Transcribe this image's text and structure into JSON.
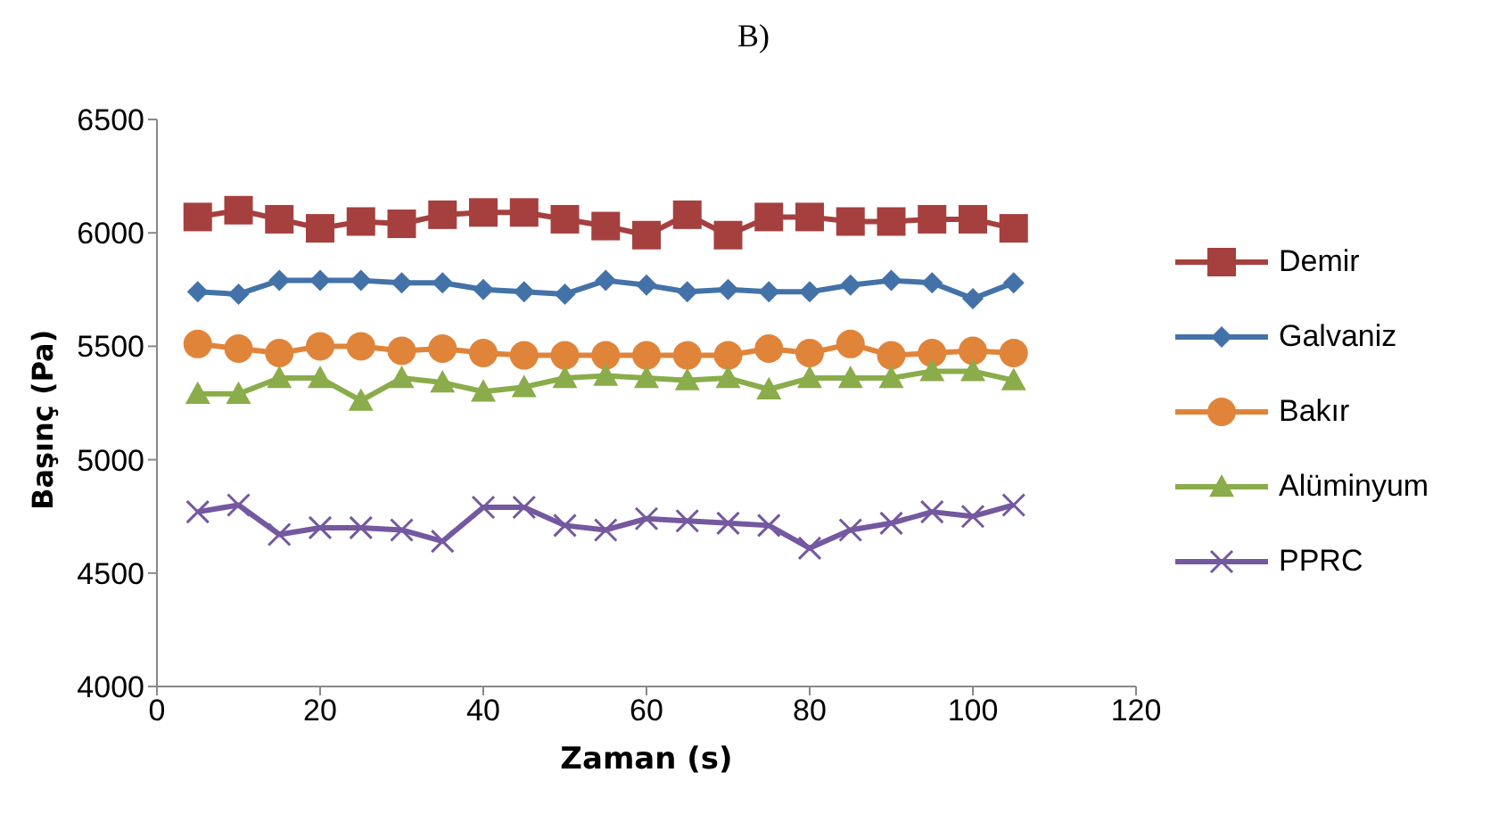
{
  "chart_data": {
    "type": "line",
    "title": "B)",
    "xlabel": "Zaman (s)",
    "ylabel": "Başınç (Pa)",
    "x": [
      5,
      10,
      15,
      20,
      25,
      30,
      35,
      40,
      45,
      50,
      55,
      60,
      65,
      70,
      75,
      80,
      85,
      90,
      95,
      100,
      105
    ],
    "xlim": [
      0,
      120
    ],
    "xticks": [
      0,
      20,
      40,
      60,
      80,
      100,
      120
    ],
    "ylim": [
      4000,
      6500
    ],
    "yticks": [
      4000,
      4500,
      5000,
      5500,
      6000,
      6500
    ],
    "grid": false,
    "legend": "right",
    "line_style": "solid",
    "series": [
      {
        "name": "Demir",
        "color": "#a5403f",
        "marker": "square",
        "values": [
          6070,
          6100,
          6060,
          6020,
          6050,
          6040,
          6080,
          6090,
          6090,
          6060,
          6030,
          5990,
          6080,
          5990,
          6070,
          6070,
          6050,
          6050,
          6060,
          6060,
          6020
        ]
      },
      {
        "name": "Galvaniz",
        "color": "#4372a8",
        "marker": "diamond",
        "values": [
          5740,
          5730,
          5790,
          5790,
          5790,
          5780,
          5780,
          5750,
          5740,
          5730,
          5790,
          5770,
          5740,
          5750,
          5740,
          5740,
          5770,
          5790,
          5780,
          5710,
          5780
        ]
      },
      {
        "name": "Bakır",
        "color": "#e0843a",
        "marker": "circle",
        "values": [
          5510,
          5490,
          5470,
          5500,
          5500,
          5480,
          5490,
          5470,
          5460,
          5460,
          5460,
          5460,
          5460,
          5460,
          5490,
          5470,
          5510,
          5460,
          5470,
          5480,
          5470
        ]
      },
      {
        "name": "Alüminyum",
        "color": "#8aac4a",
        "marker": "triangle",
        "values": [
          5290,
          5290,
          5360,
          5360,
          5260,
          5360,
          5340,
          5300,
          5320,
          5360,
          5370,
          5360,
          5350,
          5360,
          5310,
          5360,
          5360,
          5360,
          5390,
          5390,
          5350
        ]
      },
      {
        "name": "PPRC",
        "color": "#7458a0",
        "marker": "cross",
        "values": [
          4770,
          4800,
          4670,
          4700,
          4700,
          4690,
          4640,
          4790,
          4790,
          4710,
          4690,
          4740,
          4730,
          4720,
          4710,
          4610,
          4690,
          4720,
          4770,
          4750,
          4800
        ]
      }
    ]
  }
}
